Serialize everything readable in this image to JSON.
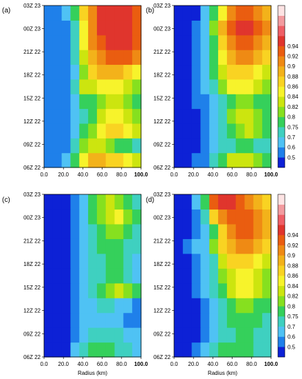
{
  "figure": {
    "x_label": "Radius (km)",
    "x_ticks": [
      "0.0",
      "20.0",
      "40.0",
      "60.0",
      "80.0",
      "100.0"
    ],
    "y_ticks": [
      "06Z 22",
      "09Z 22",
      "12Z 22",
      "15Z 22",
      "18Z 22",
      "21Z 22",
      "00Z 23",
      "03Z 23"
    ],
    "colorbar_top": {
      "levels": [
        "0.5",
        "0.6",
        "0.7",
        "0.75",
        "0.8",
        "0.82",
        "0.84",
        "0.86",
        "0.88",
        "0.9",
        "0.92",
        "0.94"
      ],
      "colors": [
        "#0d21d6",
        "#1f80ea",
        "#4fc2f4",
        "#3fd0c0",
        "#35d05b",
        "#86e01f",
        "#cce50f",
        "#f7f32b",
        "#f9d322",
        "#f3b21a",
        "#ef8a14",
        "#ea5d10",
        "#e0352d",
        "#ef5f66",
        "#f39b9f",
        "#fde3e3"
      ]
    },
    "colorbar_bottom": {
      "levels": [
        "0.5",
        "0.6",
        "0.7",
        "0.75",
        "0.8",
        "0.82",
        "0.84",
        "0.86",
        "0.88",
        "0.9",
        "0.92",
        "0.94"
      ],
      "colors": [
        "#0d21d6",
        "#1f80ea",
        "#4fc2f4",
        "#3fd0c0",
        "#35d05b",
        "#86e01f",
        "#cce50f",
        "#f7f32b",
        "#f9d322",
        "#f3b21a",
        "#ef8a14",
        "#ea5d10",
        "#e0352d",
        "#ef5f66",
        "#f39b9f",
        "#fde3e3"
      ]
    }
  },
  "chart_data": [
    {
      "type": "heatmap",
      "panel_label": "(a)",
      "xlabel": "",
      "ylabel": "",
      "x_axis_km": [
        0,
        100
      ],
      "y_axis_ticks": [
        "06Z 22",
        "09Z 22",
        "12Z 22",
        "15Z 22",
        "18Z 22",
        "21Z 22",
        "00Z 23",
        "03Z 23"
      ],
      "y_axis": [
        "06Z 22",
        "08Z 22",
        "10Z 22",
        "12Z 22",
        "14Z 22",
        "16Z 22",
        "18Z 22",
        "20Z 22",
        "22Z 22",
        "00Z 23",
        "02Z 23"
      ],
      "x_km": [
        0,
        10,
        20,
        30,
        40,
        50,
        60,
        70,
        80,
        90,
        100
      ],
      "z": [
        [
          0.5,
          0.52,
          0.62,
          0.78,
          0.85,
          0.88,
          0.88,
          0.87,
          0.86,
          0.85,
          0.82
        ],
        [
          0.5,
          0.5,
          0.55,
          0.7,
          0.8,
          0.82,
          0.82,
          0.8,
          0.78,
          0.75,
          0.72
        ],
        [
          0.5,
          0.5,
          0.5,
          0.62,
          0.75,
          0.8,
          0.84,
          0.86,
          0.86,
          0.84,
          0.82
        ],
        [
          0.5,
          0.5,
          0.5,
          0.6,
          0.72,
          0.78,
          0.82,
          0.84,
          0.84,
          0.82,
          0.8
        ],
        [
          0.5,
          0.5,
          0.52,
          0.62,
          0.75,
          0.78,
          0.8,
          0.82,
          0.82,
          0.8,
          0.78
        ],
        [
          0.5,
          0.5,
          0.58,
          0.72,
          0.82,
          0.82,
          0.84,
          0.84,
          0.84,
          0.82,
          0.8
        ],
        [
          0.5,
          0.5,
          0.52,
          0.66,
          0.8,
          0.86,
          0.88,
          0.88,
          0.88,
          0.86,
          0.84
        ],
        [
          0.5,
          0.5,
          0.55,
          0.7,
          0.82,
          0.88,
          0.9,
          0.92,
          0.93,
          0.92,
          0.9
        ],
        [
          0.5,
          0.52,
          0.56,
          0.72,
          0.84,
          0.9,
          0.93,
          0.95,
          0.95,
          0.94,
          0.92
        ],
        [
          0.5,
          0.52,
          0.58,
          0.72,
          0.84,
          0.9,
          0.94,
          0.95,
          0.95,
          0.94,
          0.93
        ],
        [
          0.5,
          0.55,
          0.62,
          0.78,
          0.86,
          0.9,
          0.94,
          0.95,
          0.95,
          0.94,
          0.92
        ]
      ]
    },
    {
      "type": "heatmap",
      "panel_label": "(b)",
      "xlabel": "",
      "ylabel": "",
      "x_axis_km": [
        0,
        100
      ],
      "y_axis_ticks": [
        "06Z 22",
        "09Z 22",
        "12Z 22",
        "15Z 22",
        "18Z 22",
        "21Z 22",
        "00Z 23",
        "03Z 23"
      ],
      "y_axis": [
        "06Z 22",
        "08Z 22",
        "10Z 22",
        "12Z 22",
        "14Z 22",
        "16Z 22",
        "18Z 22",
        "20Z 22",
        "22Z 22",
        "00Z 23",
        "02Z 23"
      ],
      "x_km": [
        0,
        10,
        20,
        30,
        40,
        50,
        60,
        70,
        80,
        90,
        100
      ],
      "z": [
        [
          0.45,
          0.45,
          0.5,
          0.58,
          0.7,
          0.78,
          0.82,
          0.82,
          0.82,
          0.8,
          0.78
        ],
        [
          0.45,
          0.45,
          0.48,
          0.55,
          0.65,
          0.7,
          0.74,
          0.75,
          0.75,
          0.72,
          0.7
        ],
        [
          0.45,
          0.45,
          0.48,
          0.55,
          0.65,
          0.72,
          0.78,
          0.8,
          0.82,
          0.8,
          0.78
        ],
        [
          0.45,
          0.45,
          0.48,
          0.55,
          0.66,
          0.74,
          0.8,
          0.82,
          0.82,
          0.8,
          0.78
        ],
        [
          0.45,
          0.45,
          0.5,
          0.58,
          0.68,
          0.74,
          0.78,
          0.8,
          0.8,
          0.78,
          0.76
        ],
        [
          0.45,
          0.46,
          0.55,
          0.65,
          0.74,
          0.8,
          0.84,
          0.84,
          0.84,
          0.82,
          0.8
        ],
        [
          0.45,
          0.45,
          0.5,
          0.62,
          0.76,
          0.82,
          0.86,
          0.86,
          0.86,
          0.84,
          0.82
        ],
        [
          0.45,
          0.45,
          0.5,
          0.62,
          0.76,
          0.84,
          0.88,
          0.9,
          0.9,
          0.88,
          0.86
        ],
        [
          0.45,
          0.45,
          0.5,
          0.65,
          0.78,
          0.86,
          0.9,
          0.92,
          0.92,
          0.9,
          0.88
        ],
        [
          0.45,
          0.45,
          0.5,
          0.65,
          0.8,
          0.88,
          0.92,
          0.94,
          0.94,
          0.92,
          0.9
        ],
        [
          0.45,
          0.45,
          0.48,
          0.6,
          0.75,
          0.85,
          0.9,
          0.92,
          0.92,
          0.9,
          0.88
        ]
      ]
    },
    {
      "type": "heatmap",
      "panel_label": "(c)",
      "xlabel": "Radius (km)",
      "ylabel": "",
      "x_axis_km": [
        0,
        100
      ],
      "y_axis_ticks": [
        "06Z 22",
        "09Z 22",
        "12Z 22",
        "15Z 22",
        "18Z 22",
        "21Z 22",
        "00Z 23",
        "03Z 23"
      ],
      "y_axis": [
        "06Z 22",
        "08Z 22",
        "10Z 22",
        "12Z 22",
        "14Z 22",
        "16Z 22",
        "18Z 22",
        "20Z 22",
        "22Z 22",
        "00Z 23",
        "02Z 23"
      ],
      "x_km": [
        0,
        10,
        20,
        30,
        40,
        50,
        60,
        70,
        80,
        90,
        100
      ],
      "z": [
        [
          0.45,
          0.45,
          0.48,
          0.6,
          0.72,
          0.76,
          0.78,
          0.76,
          0.74,
          0.7,
          0.68
        ],
        [
          0.45,
          0.45,
          0.46,
          0.55,
          0.66,
          0.72,
          0.74,
          0.72,
          0.7,
          0.66,
          0.62
        ],
        [
          0.45,
          0.45,
          0.45,
          0.5,
          0.6,
          0.66,
          0.68,
          0.66,
          0.62,
          0.58,
          0.55
        ],
        [
          0.45,
          0.45,
          0.45,
          0.5,
          0.6,
          0.66,
          0.7,
          0.7,
          0.68,
          0.62,
          0.58
        ],
        [
          0.45,
          0.45,
          0.45,
          0.52,
          0.62,
          0.7,
          0.76,
          0.8,
          0.82,
          0.8,
          0.76
        ],
        [
          0.45,
          0.45,
          0.45,
          0.52,
          0.62,
          0.7,
          0.74,
          0.76,
          0.76,
          0.72,
          0.68
        ],
        [
          0.45,
          0.45,
          0.45,
          0.52,
          0.62,
          0.7,
          0.74,
          0.76,
          0.76,
          0.72,
          0.68
        ],
        [
          0.45,
          0.45,
          0.45,
          0.52,
          0.64,
          0.72,
          0.76,
          0.78,
          0.78,
          0.74,
          0.7
        ],
        [
          0.45,
          0.45,
          0.45,
          0.54,
          0.66,
          0.74,
          0.78,
          0.8,
          0.8,
          0.76,
          0.72
        ],
        [
          0.45,
          0.45,
          0.46,
          0.56,
          0.68,
          0.76,
          0.8,
          0.82,
          0.84,
          0.8,
          0.76
        ],
        [
          0.45,
          0.45,
          0.46,
          0.56,
          0.68,
          0.75,
          0.8,
          0.82,
          0.8,
          0.76,
          0.72
        ]
      ]
    },
    {
      "type": "heatmap",
      "panel_label": "(d)",
      "xlabel": "Radius (km)",
      "ylabel": "",
      "x_axis_km": [
        0,
        100
      ],
      "y_axis_ticks": [
        "06Z 22",
        "09Z 22",
        "12Z 22",
        "15Z 22",
        "18Z 22",
        "21Z 22",
        "00Z 23",
        "03Z 23"
      ],
      "y_axis": [
        "06Z 22",
        "08Z 22",
        "10Z 22",
        "12Z 22",
        "14Z 22",
        "16Z 22",
        "18Z 22",
        "20Z 22",
        "22Z 22",
        "00Z 23",
        "02Z 23"
      ],
      "x_km": [
        0,
        10,
        20,
        30,
        40,
        50,
        60,
        70,
        80,
        90,
        100
      ],
      "z": [
        [
          0.45,
          0.45,
          0.5,
          0.6,
          0.72,
          0.76,
          0.78,
          0.78,
          0.76,
          0.74,
          0.72
        ],
        [
          0.45,
          0.45,
          0.48,
          0.56,
          0.66,
          0.72,
          0.74,
          0.76,
          0.76,
          0.74,
          0.72
        ],
        [
          0.45,
          0.45,
          0.48,
          0.56,
          0.66,
          0.72,
          0.76,
          0.78,
          0.78,
          0.76,
          0.74
        ],
        [
          0.45,
          0.45,
          0.48,
          0.56,
          0.68,
          0.74,
          0.78,
          0.8,
          0.8,
          0.78,
          0.76
        ],
        [
          0.45,
          0.46,
          0.52,
          0.62,
          0.72,
          0.78,
          0.82,
          0.84,
          0.84,
          0.82,
          0.8
        ],
        [
          0.45,
          0.46,
          0.52,
          0.62,
          0.74,
          0.8,
          0.82,
          0.84,
          0.84,
          0.82,
          0.8
        ],
        [
          0.45,
          0.46,
          0.52,
          0.62,
          0.74,
          0.82,
          0.86,
          0.86,
          0.86,
          0.84,
          0.82
        ],
        [
          0.45,
          0.5,
          0.6,
          0.68,
          0.8,
          0.86,
          0.88,
          0.9,
          0.9,
          0.88,
          0.86
        ],
        [
          0.45,
          0.46,
          0.52,
          0.64,
          0.78,
          0.86,
          0.9,
          0.92,
          0.92,
          0.9,
          0.88
        ],
        [
          0.45,
          0.46,
          0.55,
          0.7,
          0.86,
          0.9,
          0.92,
          0.92,
          0.92,
          0.9,
          0.88
        ],
        [
          0.45,
          0.46,
          0.6,
          0.78,
          0.92,
          0.94,
          0.95,
          0.93,
          0.9,
          0.88,
          0.86
        ]
      ]
    }
  ]
}
